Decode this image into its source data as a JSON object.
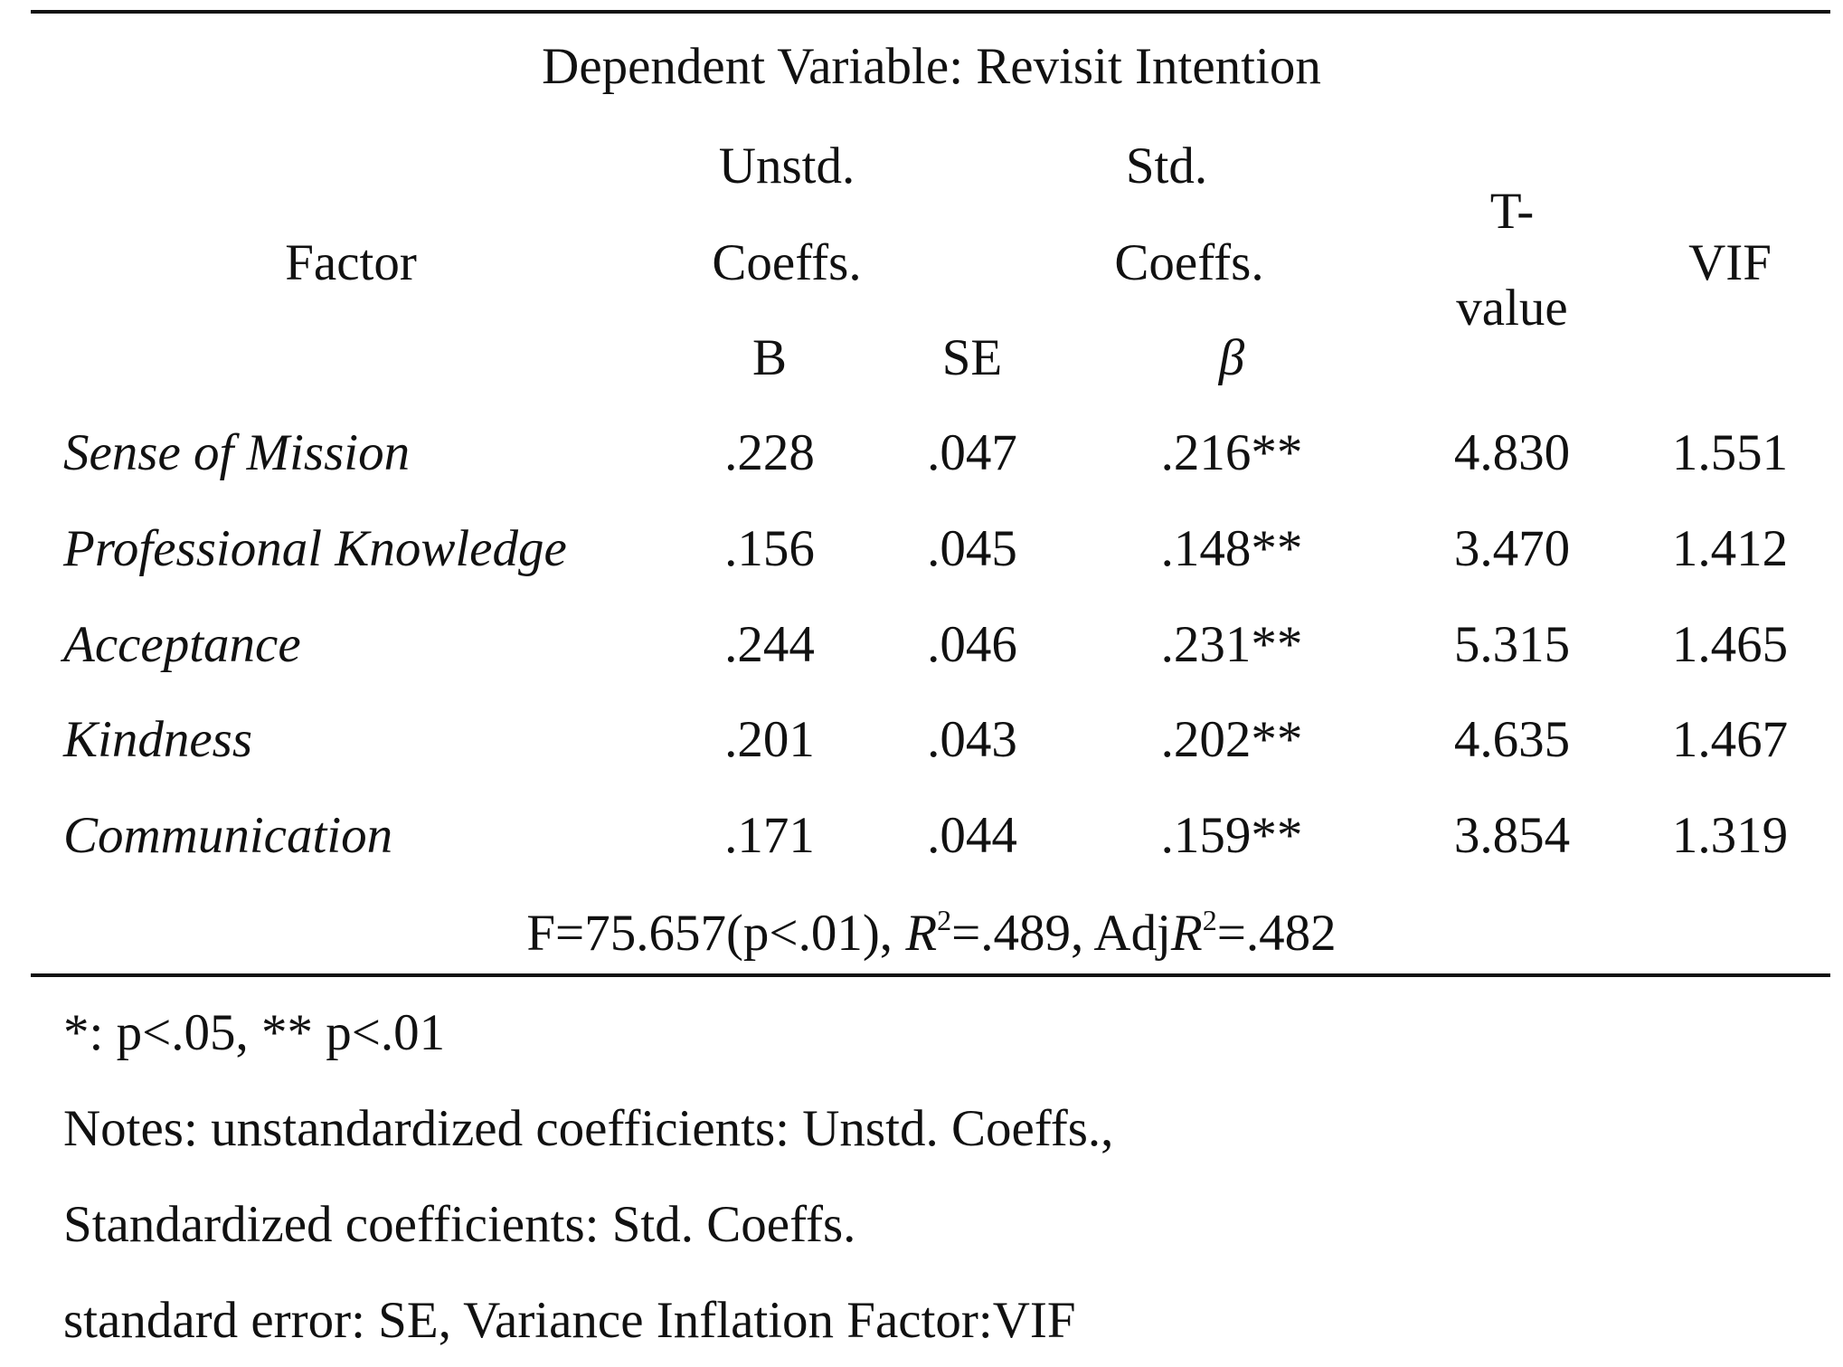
{
  "table": {
    "dependent_variable": "Dependent Variable: Revisit Intention",
    "headers": {
      "factor": "Factor",
      "unstd_line1": "Unstd.",
      "unstd_line2": "Coeffs.",
      "b": "B",
      "se": "SE",
      "std_line1": "Std.",
      "std_line2": "Coeffs.",
      "beta": "β",
      "t_line1": "T-",
      "t_line2": "value",
      "vif": "VIF"
    },
    "rows": [
      {
        "factor": "Sense of Mission",
        "b": ".228",
        "se": ".047",
        "beta": ".216**",
        "t": "4.830",
        "vif": "1.551"
      },
      {
        "factor": "Professional Knowledge",
        "b": ".156",
        "se": ".045",
        "beta": ".148**",
        "t": "3.470",
        "vif": "1.412"
      },
      {
        "factor": "Acceptance",
        "b": ".244",
        "se": ".046",
        "beta": ".231**",
        "t": "5.315",
        "vif": "1.465"
      },
      {
        "factor": "Kindness",
        "b": ".201",
        "se": ".043",
        "beta": ".202**",
        "t": "4.635",
        "vif": "1.467"
      },
      {
        "factor": "Communication",
        "b": ".171",
        "se": ".044",
        "beta": ".159**",
        "t": "3.854",
        "vif": "1.319"
      }
    ],
    "summary": {
      "f_part": "F=75.657(p<.01), ",
      "r2_symbol": "R",
      "r2_sup": "2",
      "r2_value": "=.489, Adj",
      "adj_r2_symbol": "R",
      "adj_r2_sup": "2",
      "adj_r2_value": "=.482"
    }
  },
  "footnotes": [
    "*: p<.05, ** p<.01",
    "Notes: unstandardized coefficients: Unstd. Coeffs.,",
    "Standardized coefficients: Std. Coeffs.",
    "standard error: SE, Variance Inflation Factor:VIF"
  ]
}
